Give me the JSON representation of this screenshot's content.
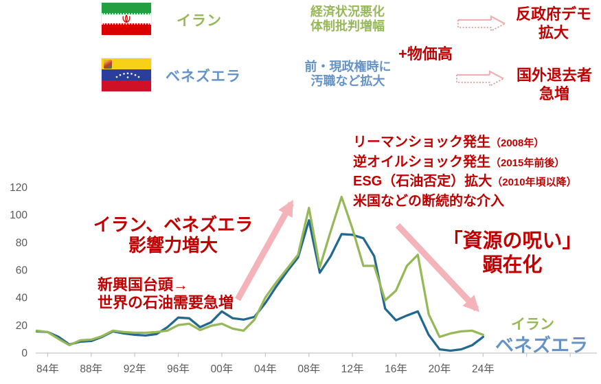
{
  "header": {
    "iran": {
      "label": "イラン",
      "flag_icon": "iran-flag",
      "note_line1": "経済状況悪化",
      "note_line2": "体制批判増幅"
    },
    "venezuela": {
      "label": "ベネズエラ",
      "flag_icon": "venezuela-flag",
      "note_line1": "前・現政権時に",
      "note_line2": "汚職など拡大"
    },
    "plus_factor": "+物価高",
    "outcome_iran": {
      "line1": "反政府デモ",
      "line2": "拡大"
    },
    "outcome_venezuela": {
      "line1": "国外退去者",
      "line2": "急増"
    }
  },
  "annotations": {
    "events": [
      {
        "main": "リーマンショック発生",
        "note": "（2008年）"
      },
      {
        "main": "逆オイルショック発生",
        "note": "（2015年前後）"
      },
      {
        "main": "ESG（石油否定）拡大",
        "note": "（2010年頃以降）"
      },
      {
        "main": "米国などの断続的な介入",
        "note": ""
      }
    ],
    "influence_line1": "イラン、ベネズエラ",
    "influence_line2": "影響力増大",
    "demand_line1": "新興国台頭→",
    "demand_line2": "世界の石油需要急増",
    "curse_line1": "「資源の呪い」",
    "curse_line2": "顕在化",
    "series_label_iran": "イラン",
    "series_label_venezuela": "ベネズエラ"
  },
  "chart_data": {
    "type": "line",
    "x_years": [
      1983,
      1984,
      1985,
      1986,
      1987,
      1988,
      1989,
      1990,
      1991,
      1992,
      1993,
      1994,
      1995,
      1996,
      1997,
      1998,
      1999,
      2000,
      2001,
      2002,
      2003,
      2004,
      2005,
      2006,
      2007,
      2008,
      2009,
      2010,
      2011,
      2012,
      2013,
      2014,
      2015,
      2016,
      2017,
      2018,
      2019,
      2020,
      2021,
      2022,
      2023,
      2024
    ],
    "x_tick_labels": [
      "84年",
      "88年",
      "92年",
      "96年",
      "00年",
      "04年",
      "08年",
      "12年",
      "16年",
      "20年",
      "24年"
    ],
    "x_tick_years": [
      1984,
      1988,
      1992,
      1996,
      2000,
      2004,
      2008,
      2012,
      2016,
      2020,
      2024
    ],
    "extra_tick_years": [
      2028,
      2032
    ],
    "y_ticks": [
      0,
      20,
      40,
      60,
      80,
      100,
      120
    ],
    "ylim": [
      0,
      120
    ],
    "grid": false,
    "legend_position": "right-bottom",
    "series": [
      {
        "name": "イラン",
        "color": "#97B858",
        "values": [
          16,
          15,
          10,
          5.5,
          9,
          9.5,
          12,
          16,
          15,
          14.5,
          14.5,
          15,
          16,
          20,
          21,
          16.5,
          19.5,
          21,
          17.5,
          16,
          24,
          40,
          51,
          61,
          71,
          105,
          62,
          88,
          113,
          90,
          63,
          63,
          38,
          45,
          63,
          71,
          28,
          11.5,
          14,
          15.5,
          16,
          13
        ]
      },
      {
        "name": "ベネズエラ",
        "color": "#23698F",
        "values": [
          15.5,
          15,
          11.5,
          6,
          8,
          8.5,
          11.5,
          15.5,
          14,
          13,
          12.5,
          13.5,
          18.5,
          25.5,
          25,
          18.5,
          22,
          30,
          25,
          24,
          26,
          36,
          48,
          59,
          69,
          96,
          58,
          70,
          86,
          85.5,
          83,
          70,
          32,
          23.5,
          27,
          30,
          13,
          2.5,
          1.5,
          2.5,
          5.5,
          11.5
        ]
      }
    ]
  },
  "colors": {
    "iran_green": "#97B858",
    "venezuela_line_blue": "#23698F",
    "venezuela_text_blue": "#6593C6",
    "annotation_red": "#C00000",
    "arrow_pink": "#F4B3B9",
    "axis_line_gray": "#C6C6C6",
    "tick_label_gray": "#595959",
    "iran_flag_green": "#239F40",
    "iran_flag_red": "#DA0000",
    "venezuela_flag_yellow": "#F7D117",
    "venezuela_flag_blue": "#2B3E9B",
    "venezuela_flag_red": "#CE1126"
  }
}
